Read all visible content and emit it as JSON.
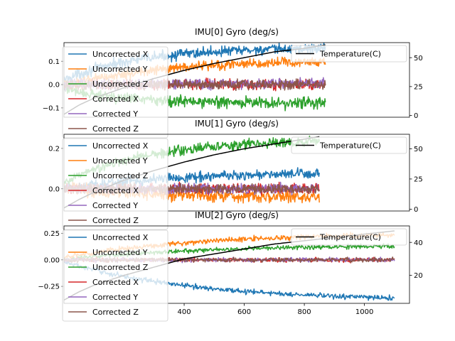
{
  "figure": {
    "background": "#ffffff"
  },
  "chart_data": [
    {
      "type": "line",
      "title": "IMU[0] Gyro (deg/s)",
      "xlabel": "",
      "ylabel": "",
      "xlim": [
        0,
        1150
      ],
      "ylim": [
        -0.14,
        0.18
      ],
      "y2lim": [
        -1.5,
        63
      ],
      "x_ticks": [],
      "x_tick_labels": [],
      "y_ticks": [
        -0.1,
        0.0,
        0.1
      ],
      "y_tick_labels": [
        "−0.1",
        "0.0",
        "0.1"
      ],
      "y2_ticks": [
        0,
        25,
        50
      ],
      "y2_tick_labels": [
        "0",
        "25",
        "50"
      ],
      "x_range": [
        0,
        870
      ],
      "legend_left": [
        "Uncorrected X",
        "Uncorrected Y",
        "Uncorrected Z",
        "Corrected X",
        "Corrected Y",
        "Corrected Z"
      ],
      "legend_right": [
        "Temperature(C)"
      ],
      "series": [
        {
          "name": "Uncorrected X",
          "color": "#1f77b4",
          "start": 0.02,
          "end": 0.155,
          "rate": 3.5,
          "noise": 0.011
        },
        {
          "name": "Uncorrected Y",
          "color": "#ff7f0e",
          "start": -0.005,
          "end": 0.1,
          "rate": 2.5,
          "noise": 0.01
        },
        {
          "name": "Uncorrected Z",
          "color": "#2ca02c",
          "start": -0.02,
          "end": -0.08,
          "rate": 4,
          "noise": 0.012
        },
        {
          "name": "Corrected X",
          "color": "#d62728",
          "start": 0.0,
          "end": 0.0,
          "rate": 1,
          "noise": 0.011
        },
        {
          "name": "Corrected Y",
          "color": "#9467bd",
          "start": 0.0,
          "end": 0.005,
          "rate": 1,
          "noise": 0.011
        },
        {
          "name": "Corrected Z",
          "color": "#8c564b",
          "start": 0.0,
          "end": 0.0,
          "rate": 1,
          "noise": 0.01
        }
      ],
      "temperature": {
        "name": "Temperature(C)",
        "color": "#000000",
        "x": [
          0,
          50,
          100,
          200,
          300,
          400,
          500,
          600,
          700,
          800,
          870
        ],
        "y": [
          1,
          9,
          15,
          24,
          32,
          39,
          45,
          50,
          55,
          58,
          61
        ]
      }
    },
    {
      "type": "line",
      "title": "IMU[1] Gyro (deg/s)",
      "xlabel": "",
      "ylabel": "",
      "xlim": [
        0,
        1150
      ],
      "ylim": [
        -0.11,
        0.27
      ],
      "y2lim": [
        -1.5,
        62
      ],
      "x_ticks": [],
      "x_tick_labels": [],
      "y_ticks": [
        0.0,
        0.2
      ],
      "y_tick_labels": [
        "0.0",
        "0.2"
      ],
      "y2_ticks": [
        0,
        25,
        50
      ],
      "y2_tick_labels": [
        "0",
        "25",
        "50"
      ],
      "x_range": [
        0,
        850
      ],
      "legend_left": [
        "Uncorrected X",
        "Uncorrected Y",
        "Uncorrected Z",
        "Corrected X",
        "Corrected Y",
        "Corrected Z"
      ],
      "legend_right": [
        "Temperature(C)"
      ],
      "series": [
        {
          "name": "Uncorrected X",
          "color": "#1f77b4",
          "start": 0.0,
          "end": 0.075,
          "rate": 2.5,
          "noise": 0.012
        },
        {
          "name": "Uncorrected Y",
          "color": "#ff7f0e",
          "start": 0.0,
          "end": -0.04,
          "rate": 2.5,
          "noise": 0.015
        },
        {
          "name": "Uncorrected Z",
          "color": "#2ca02c",
          "start": 0.03,
          "end": 0.235,
          "rate": 3,
          "noise": 0.012
        },
        {
          "name": "Corrected X",
          "color": "#d62728",
          "start": 0.0,
          "end": 0.0,
          "rate": 1,
          "noise": 0.012
        },
        {
          "name": "Corrected Y",
          "color": "#9467bd",
          "start": 0.0,
          "end": 0.0,
          "rate": 1,
          "noise": 0.012
        },
        {
          "name": "Corrected Z",
          "color": "#8c564b",
          "start": 0.0,
          "end": 0.0,
          "rate": 1,
          "noise": 0.012
        }
      ],
      "temperature": {
        "name": "Temperature(C)",
        "color": "#000000",
        "x": [
          0,
          50,
          100,
          200,
          300,
          400,
          500,
          600,
          700,
          800,
          850
        ],
        "y": [
          1,
          8,
          14,
          24,
          32,
          39,
          45,
          50,
          54,
          58,
          60
        ]
      }
    },
    {
      "type": "line",
      "title": "IMU[2] Gyro (deg/s)",
      "xlabel": "",
      "ylabel": "",
      "xlim": [
        0,
        1150
      ],
      "ylim": [
        -0.41,
        0.32
      ],
      "y2lim": [
        3,
        50
      ],
      "x_ticks": [
        400,
        600,
        800,
        1000
      ],
      "x_tick_labels": [
        "400",
        "600",
        "800",
        "1000"
      ],
      "y_ticks": [
        -0.25,
        0.0,
        0.25
      ],
      "y_tick_labels": [
        "−0.25",
        "0.00",
        "0.25"
      ],
      "y2_ticks": [
        20,
        40
      ],
      "y2_tick_labels": [
        "20",
        "40"
      ],
      "x_range": [
        0,
        1100
      ],
      "legend_left": [
        "Uncorrected X",
        "Uncorrected Y",
        "Uncorrected Z",
        "Corrected X",
        "Corrected Y",
        "Corrected Z"
      ],
      "legend_right": [
        "Temperature(C)"
      ],
      "series": [
        {
          "name": "Uncorrected X",
          "color": "#1f77b4",
          "start": -0.02,
          "end": -0.36,
          "rate": 2.5,
          "noise": 0.012
        },
        {
          "name": "Uncorrected Y",
          "color": "#ff7f0e",
          "start": 0.02,
          "end": 0.235,
          "rate": 2.5,
          "noise": 0.012
        },
        {
          "name": "Uncorrected Z",
          "color": "#2ca02c",
          "start": 0.0,
          "end": 0.13,
          "rate": 2.5,
          "noise": 0.01
        },
        {
          "name": "Corrected X",
          "color": "#d62728",
          "start": 0.0,
          "end": 0.0,
          "rate": 1,
          "noise": 0.01
        },
        {
          "name": "Corrected Y",
          "color": "#9467bd",
          "start": 0.0,
          "end": 0.0,
          "rate": 1,
          "noise": 0.01
        },
        {
          "name": "Corrected Z",
          "color": "#8c564b",
          "start": 0.0,
          "end": 0.0,
          "rate": 1,
          "noise": 0.01
        }
      ],
      "temperature": {
        "name": "Temperature(C)",
        "color": "#000000",
        "x": [
          0,
          50,
          100,
          200,
          300,
          400,
          500,
          600,
          700,
          800,
          900,
          1000,
          1100
        ],
        "y": [
          5,
          10,
          14,
          20,
          25,
          30,
          33,
          36,
          39,
          41,
          43,
          45,
          47
        ]
      }
    }
  ]
}
